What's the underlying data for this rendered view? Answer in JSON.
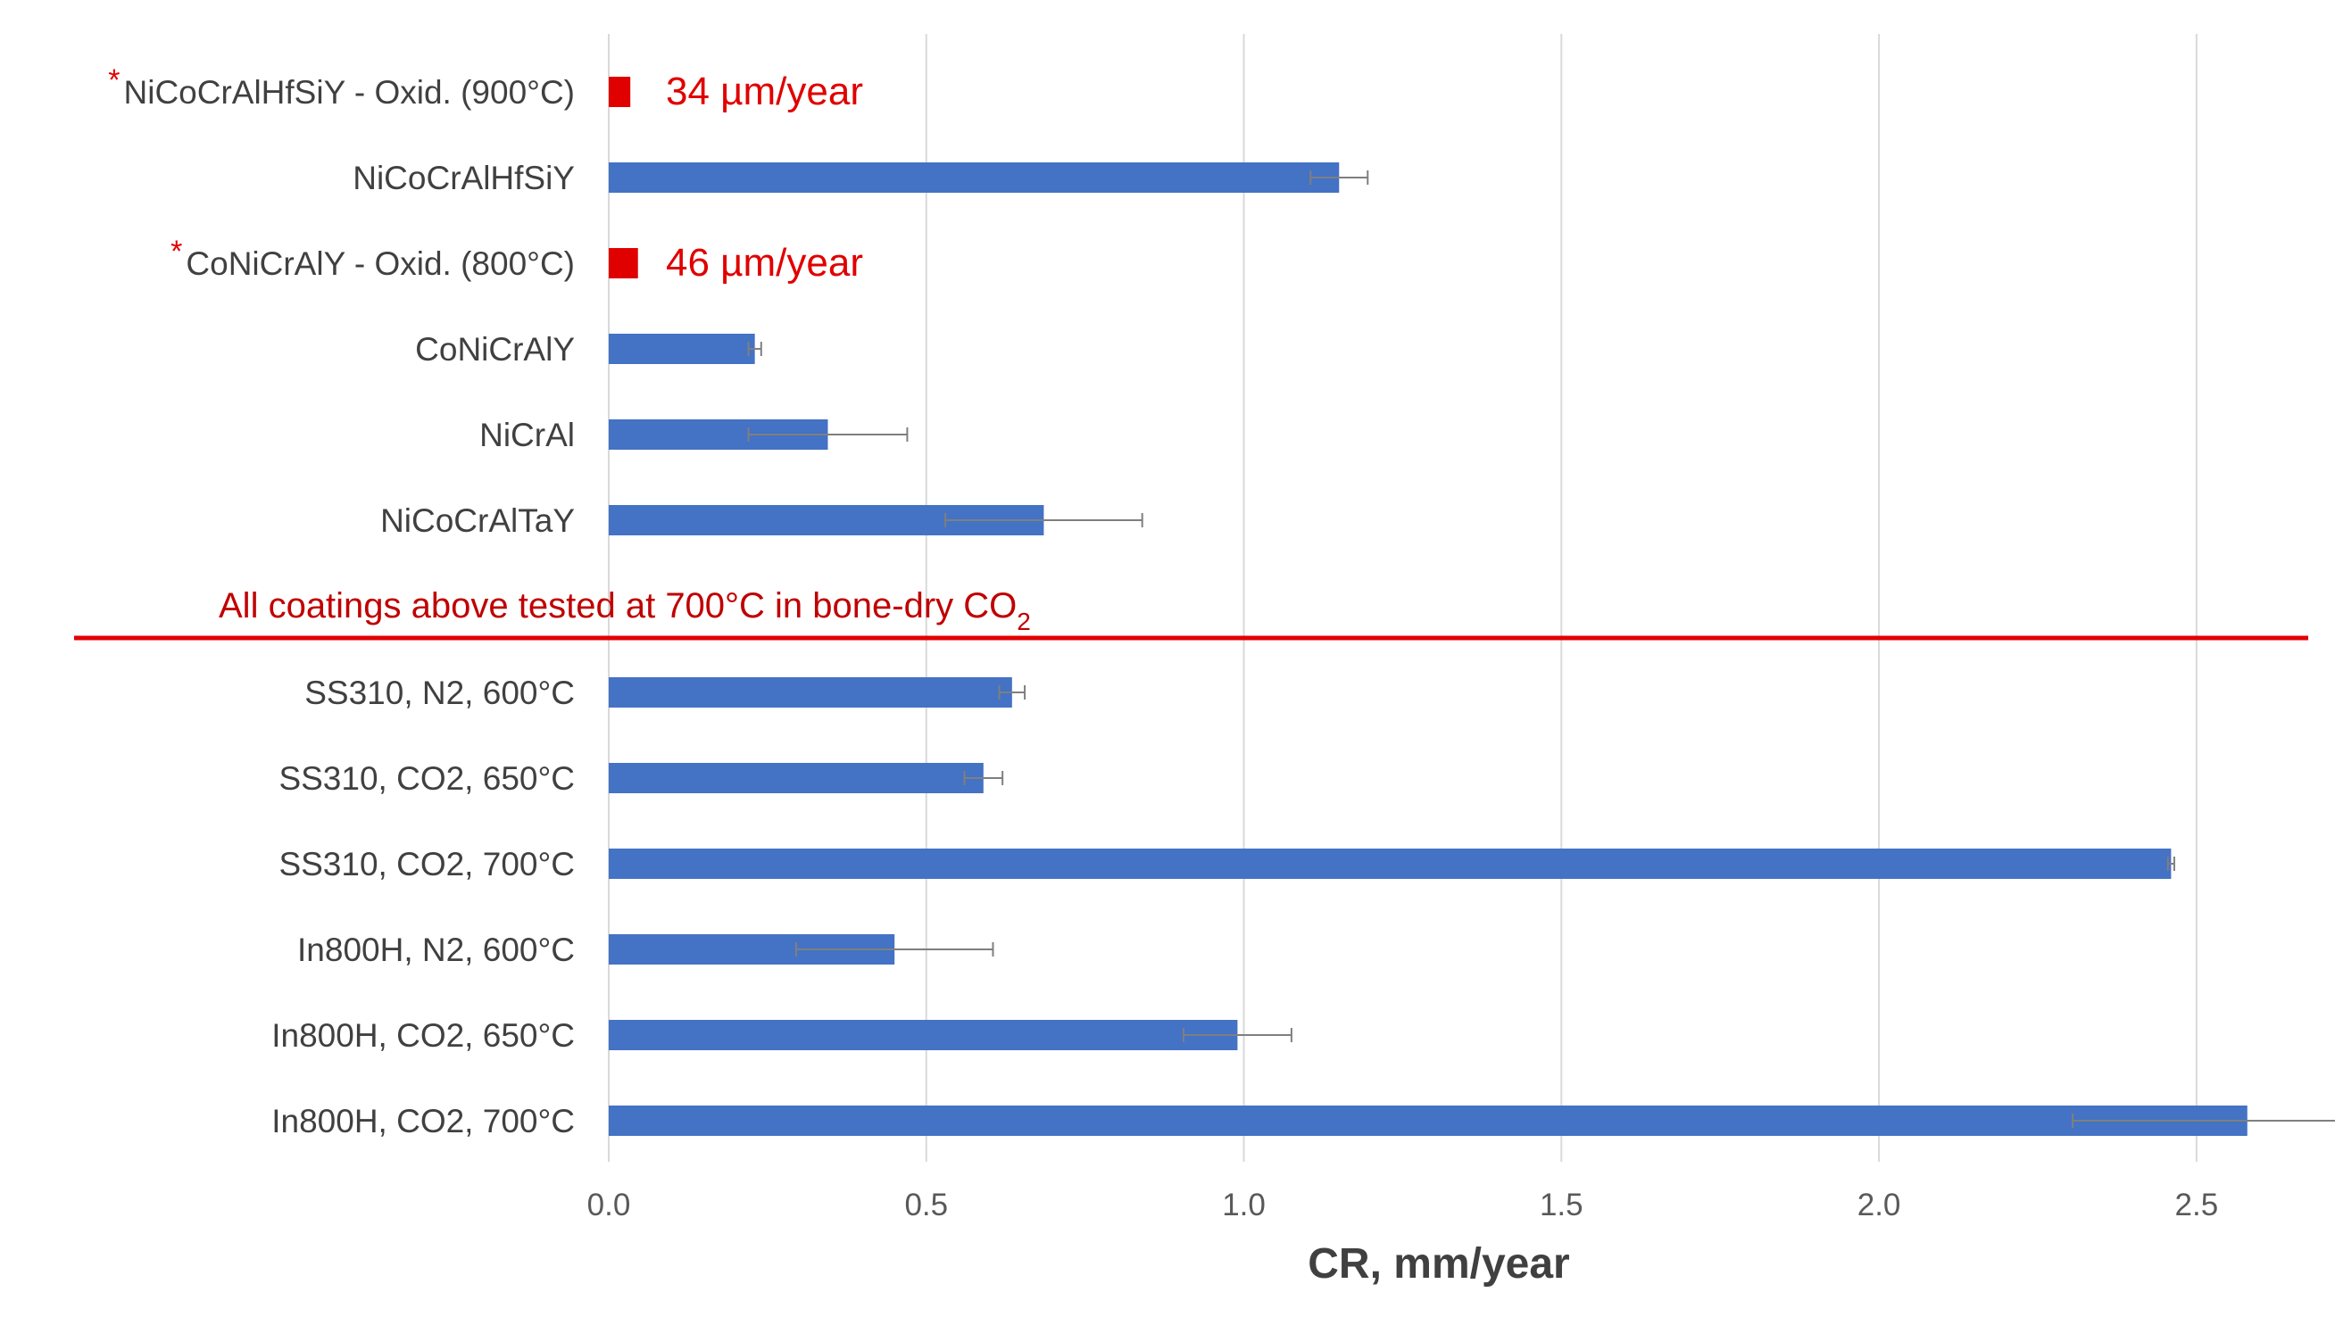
{
  "chart_data": {
    "type": "bar",
    "orientation": "horizontal",
    "xlabel": "CR, mm/year",
    "xlim": [
      0,
      2.6
    ],
    "xticks": [
      "0.0",
      "0.5",
      "1.0",
      "1.5",
      "2.0",
      "2.5"
    ],
    "grid": true,
    "bar_color": "#4472c4",
    "highlight_color": "#e00000",
    "categories": [
      "NiCoCrAlHfSiY - Oxid. (900°C)",
      "NiCoCrAlHfSiY",
      "CoNiCrAlY - Oxid. (800°C)",
      "CoNiCrAlY",
      "NiCrAl",
      "NiCoCrAlTaY",
      "SS310, N2, 600°C",
      "SS310, CO2, 650°C",
      "SS310, CO2, 700°C",
      "In800H, N2, 600°C",
      "In800H, CO2, 650°C",
      "In800H, CO2, 700°C"
    ],
    "values": [
      0.034,
      1.15,
      0.046,
      0.23,
      0.345,
      0.685,
      0.635,
      0.59,
      2.46,
      0.45,
      0.99,
      2.58
    ],
    "errors": [
      0,
      0.045,
      0,
      0.01,
      0.125,
      0.155,
      0.02,
      0.03,
      0.005,
      0.155,
      0.085,
      0.275
    ],
    "starred": [
      true,
      false,
      true,
      false,
      false,
      false,
      false,
      false,
      false,
      false,
      false,
      false
    ],
    "annotations": [
      "34 µm/year",
      "",
      "46 µm/year",
      "",
      "",
      "",
      "",
      "",
      "",
      "",
      "",
      ""
    ],
    "star_symbol": "*",
    "divider_text": "All coatings above tested at 700°C in bone-dry CO",
    "divider_subscript": "2",
    "divider_color": "#e00000"
  }
}
